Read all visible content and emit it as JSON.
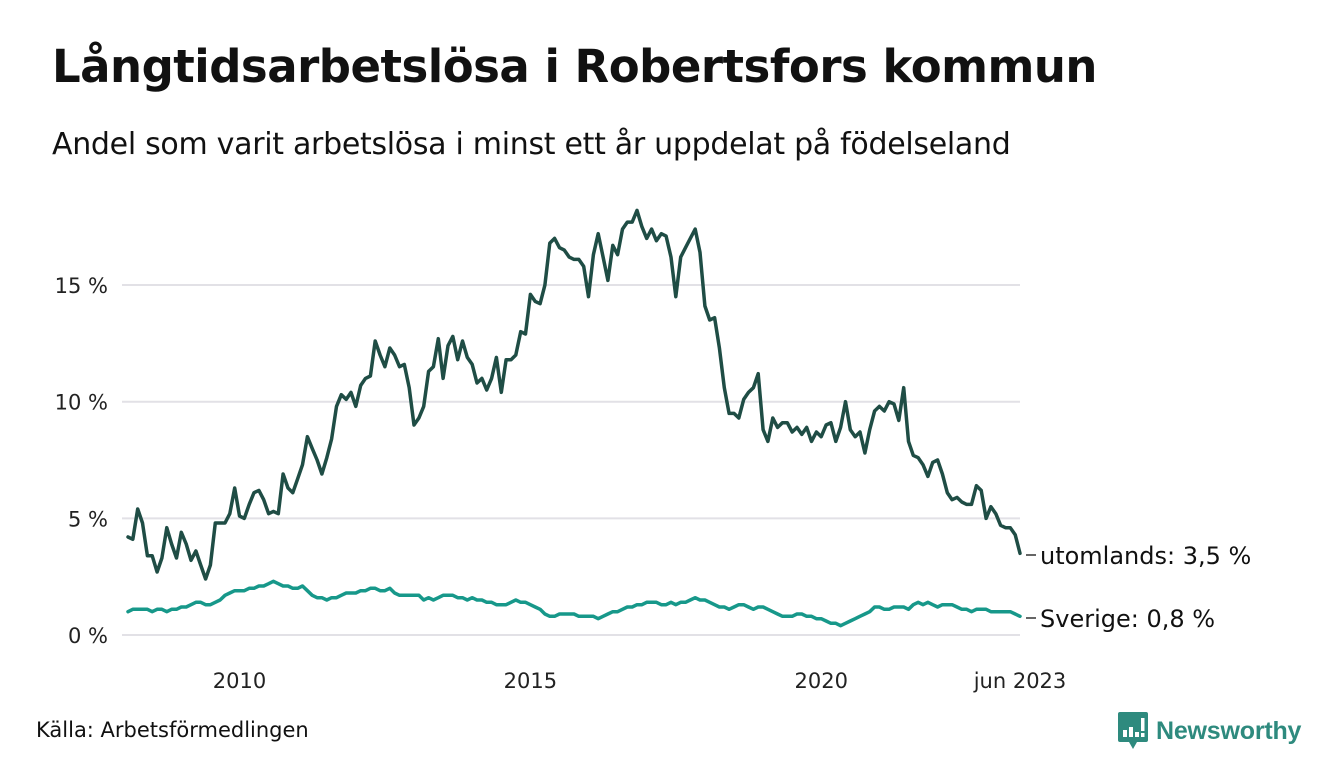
{
  "header": {
    "title": "Långtidsarbetslösa i Robertsfors kommun",
    "subtitle": "Andel som varit arbetslösa i minst ett år uppdelat på födelseland"
  },
  "footer": {
    "source": "Källa: Arbetsförmedlingen",
    "logo_text": "Newsworthy",
    "logo_color": "#2e8a7e"
  },
  "chart_data": {
    "type": "line",
    "title": "Långtidsarbetslösa i Robertsfors kommun",
    "subtitle": "Andel som varit arbetslösa i minst ett år uppdelat på födelseland",
    "xlabel": "",
    "ylabel": "",
    "x_start": "2008-02",
    "x_end": "2023-06",
    "x_frequency": "monthly",
    "xticks": [
      {
        "label": "2010",
        "date": "2010-01"
      },
      {
        "label": "2015",
        "date": "2015-01"
      },
      {
        "label": "2020",
        "date": "2020-01"
      },
      {
        "label": "jun 2023",
        "date": "2023-06"
      }
    ],
    "yticks": [
      {
        "label": "0 %",
        "value": 0
      },
      {
        "label": "5 %",
        "value": 5
      },
      {
        "label": "10 %",
        "value": 10
      },
      {
        "label": "15 %",
        "value": 15
      }
    ],
    "ylim": [
      0,
      18.5
    ],
    "grid": "horizontal",
    "legend": "end-of-line labels",
    "series": [
      {
        "name": "utomlands",
        "end_label": "utomlands: 3,5 %",
        "color": "#1f4d45",
        "values": [
          4.2,
          4.1,
          5.4,
          4.8,
          3.4,
          3.4,
          2.7,
          3.3,
          4.6,
          3.9,
          3.3,
          4.4,
          3.9,
          3.2,
          3.6,
          3.0,
          2.4,
          3.0,
          4.8,
          4.8,
          4.8,
          5.2,
          6.3,
          5.1,
          5.0,
          5.6,
          6.1,
          6.2,
          5.8,
          5.2,
          5.3,
          5.2,
          6.9,
          6.3,
          6.1,
          6.7,
          7.3,
          8.5,
          8.0,
          7.5,
          6.9,
          7.6,
          8.4,
          9.8,
          10.3,
          10.1,
          10.4,
          9.8,
          10.7,
          11.0,
          11.1,
          12.6,
          12.0,
          11.5,
          12.3,
          12.0,
          11.5,
          11.6,
          10.6,
          9.0,
          9.3,
          9.8,
          11.3,
          11.5,
          12.7,
          11.0,
          12.4,
          12.8,
          11.8,
          12.6,
          11.9,
          11.6,
          10.8,
          11.0,
          10.5,
          11.0,
          11.9,
          10.4,
          11.8,
          11.8,
          12.0,
          13.0,
          12.9,
          14.6,
          14.3,
          14.2,
          15.0,
          16.8,
          17.0,
          16.6,
          16.5,
          16.2,
          16.1,
          16.1,
          15.8,
          14.5,
          16.3,
          17.2,
          16.2,
          15.2,
          16.7,
          16.3,
          17.4,
          17.7,
          17.7,
          18.2,
          17.5,
          17.0,
          17.4,
          16.9,
          17.2,
          17.1,
          16.2,
          14.5,
          16.2,
          16.6,
          17.0,
          17.4,
          16.4,
          14.1,
          13.5,
          13.6,
          12.3,
          10.6,
          9.5,
          9.5,
          9.3,
          10.1,
          10.4,
          10.6,
          11.2,
          8.8,
          8.3,
          9.3,
          8.9,
          9.1,
          9.1,
          8.7,
          8.9,
          8.6,
          8.9,
          8.3,
          8.7,
          8.5,
          9.0,
          9.1,
          8.3,
          8.9,
          10.0,
          8.8,
          8.5,
          8.7,
          7.8,
          8.8,
          9.6,
          9.8,
          9.6,
          10.0,
          9.9,
          9.2,
          10.6,
          8.3,
          7.7,
          7.6,
          7.3,
          6.8,
          7.4,
          7.5,
          6.9,
          6.1,
          5.8,
          5.9,
          5.7,
          5.6,
          5.6,
          6.4,
          6.2,
          5.0,
          5.5,
          5.2,
          4.7,
          4.6,
          4.6,
          4.3,
          3.5
        ]
      },
      {
        "name": "Sverige",
        "end_label": "Sverige: 0,8 %",
        "color": "#17988a",
        "values": [
          1.0,
          1.1,
          1.1,
          1.1,
          1.1,
          1.0,
          1.1,
          1.1,
          1.0,
          1.1,
          1.1,
          1.2,
          1.2,
          1.3,
          1.4,
          1.4,
          1.3,
          1.3,
          1.4,
          1.5,
          1.7,
          1.8,
          1.9,
          1.9,
          1.9,
          2.0,
          2.0,
          2.1,
          2.1,
          2.2,
          2.3,
          2.2,
          2.1,
          2.1,
          2.0,
          2.0,
          2.1,
          1.9,
          1.7,
          1.6,
          1.6,
          1.5,
          1.6,
          1.6,
          1.7,
          1.8,
          1.8,
          1.8,
          1.9,
          1.9,
          2.0,
          2.0,
          1.9,
          1.9,
          2.0,
          1.8,
          1.7,
          1.7,
          1.7,
          1.7,
          1.7,
          1.5,
          1.6,
          1.5,
          1.6,
          1.7,
          1.7,
          1.7,
          1.6,
          1.6,
          1.5,
          1.6,
          1.5,
          1.5,
          1.4,
          1.4,
          1.3,
          1.3,
          1.3,
          1.4,
          1.5,
          1.4,
          1.4,
          1.3,
          1.2,
          1.1,
          0.9,
          0.8,
          0.8,
          0.9,
          0.9,
          0.9,
          0.9,
          0.8,
          0.8,
          0.8,
          0.8,
          0.7,
          0.8,
          0.9,
          1.0,
          1.0,
          1.1,
          1.2,
          1.2,
          1.3,
          1.3,
          1.4,
          1.4,
          1.4,
          1.3,
          1.3,
          1.4,
          1.3,
          1.4,
          1.4,
          1.5,
          1.6,
          1.5,
          1.5,
          1.4,
          1.3,
          1.2,
          1.2,
          1.1,
          1.2,
          1.3,
          1.3,
          1.2,
          1.1,
          1.2,
          1.2,
          1.1,
          1.0,
          0.9,
          0.8,
          0.8,
          0.8,
          0.9,
          0.9,
          0.8,
          0.8,
          0.7,
          0.7,
          0.6,
          0.5,
          0.5,
          0.4,
          0.5,
          0.6,
          0.7,
          0.8,
          0.9,
          1.0,
          1.2,
          1.2,
          1.1,
          1.1,
          1.2,
          1.2,
          1.2,
          1.1,
          1.3,
          1.4,
          1.3,
          1.4,
          1.3,
          1.2,
          1.3,
          1.3,
          1.3,
          1.2,
          1.1,
          1.1,
          1.0,
          1.1,
          1.1,
          1.1,
          1.0,
          1.0,
          1.0,
          1.0,
          1.0,
          0.9,
          0.8
        ]
      }
    ]
  }
}
